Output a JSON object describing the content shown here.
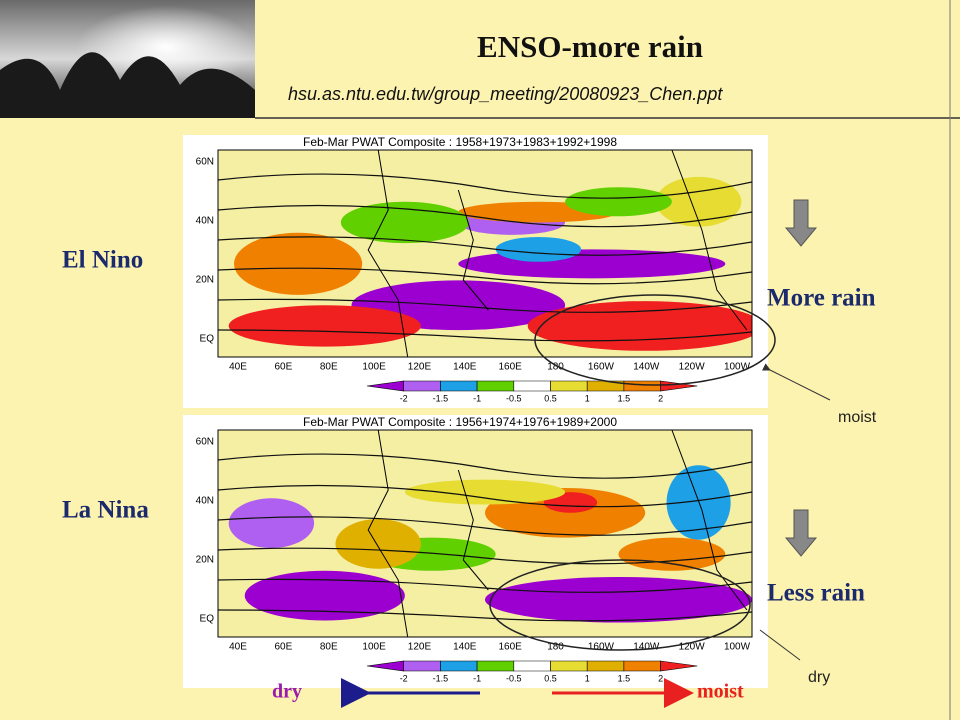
{
  "header": {
    "title": "ENSO-more rain",
    "source": "hsu.as.ntu.edu.tw/group_meeting/20080923_Chen.ppt"
  },
  "panels": [
    {
      "label": "El Nino",
      "map_title": "Feb-Mar PWAT  Composite : 1958+1973+1983+1992+1998",
      "effect": "More rain",
      "callout": "moist"
    },
    {
      "label": "La Nina",
      "map_title": "Feb-Mar PWAT  Composite : 1956+1974+1976+1989+2000",
      "effect": "Less rain",
      "callout": "dry"
    }
  ],
  "map_axes": {
    "lat_labels": [
      "60N",
      "40N",
      "20N",
      "EQ"
    ],
    "lon_labels": [
      "40E",
      "60E",
      "80E",
      "100E",
      "120E",
      "140E",
      "160E",
      "180",
      "160W",
      "140W",
      "120W",
      "100W"
    ]
  },
  "colorbar": {
    "labels": [
      "-2",
      "-1.5",
      "-1",
      "-0.5",
      "0.5",
      "1",
      "1.5",
      "2"
    ]
  },
  "legend": {
    "left": "dry",
    "right": "moist"
  }
}
